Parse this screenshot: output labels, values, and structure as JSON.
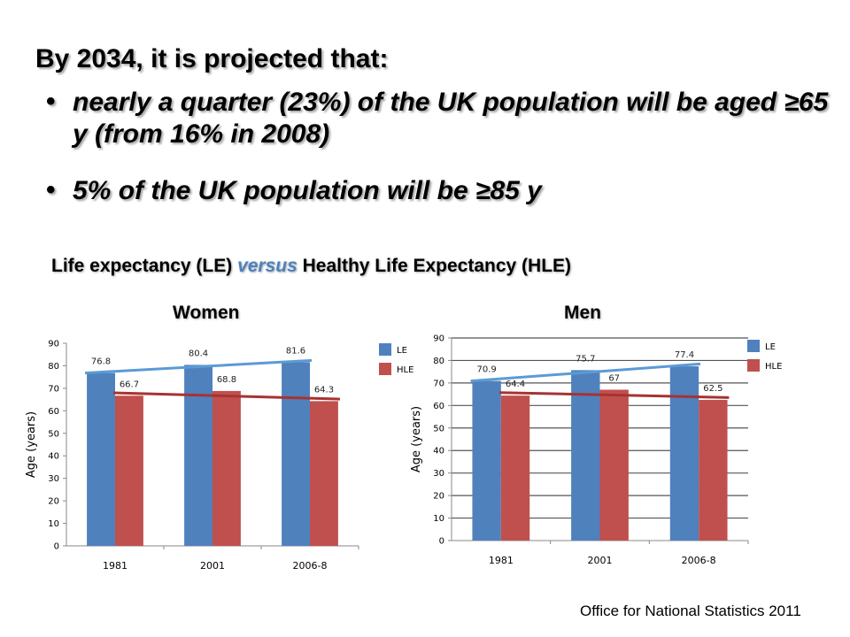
{
  "heading": "By 2034, it is projected that:",
  "bullets": [
    "nearly a quarter (23%) of the UK population will be aged ≥65 y (from 16% in 2008)",
    "5% of the UK population will be ≥85 y"
  ],
  "bullet_symbol": "•",
  "subtitle": {
    "part1": "Life expectancy (LE) ",
    "versus": "versus",
    "part2": " Healthy Life Expectancy (HLE)"
  },
  "source": "Office for National Statistics 2011",
  "colors": {
    "le": "#4f81bd",
    "hle": "#c0504d",
    "le_trend": "#5b9bd5",
    "hle_trend": "#a83232",
    "versus": "#4f81bd"
  },
  "chart_data": [
    {
      "type": "bar",
      "title": "Women",
      "categories": [
        "1981",
        "2001",
        "2006-8"
      ],
      "ylabel": "Age (years)",
      "ylim": [
        0,
        90
      ],
      "yticks": [
        0,
        10,
        20,
        30,
        40,
        50,
        60,
        70,
        80,
        90
      ],
      "grid": false,
      "legend_position": "top-right",
      "series": [
        {
          "name": "LE",
          "values": [
            76.8,
            80.4,
            81.6
          ],
          "labels": [
            "76.8",
            "80.4",
            "81.6"
          ]
        },
        {
          "name": "HLE",
          "values": [
            66.7,
            68.8,
            64.3
          ],
          "labels": [
            "66.7",
            "68.8",
            "64.3"
          ]
        }
      ]
    },
    {
      "type": "bar",
      "title": "Men",
      "categories": [
        "1981",
        "2001",
        "2006-8"
      ],
      "ylabel": "Age (years)",
      "ylim": [
        0,
        90
      ],
      "yticks": [
        0,
        10,
        20,
        30,
        40,
        50,
        60,
        70,
        80,
        90
      ],
      "grid": true,
      "legend_position": "top-right",
      "series": [
        {
          "name": "LE",
          "values": [
            70.9,
            75.7,
            77.4
          ],
          "labels": [
            "70.9",
            "75.7",
            "77.4"
          ]
        },
        {
          "name": "HLE",
          "values": [
            64.4,
            67,
            62.5
          ],
          "labels": [
            "64.4",
            "67",
            "62.5"
          ]
        }
      ]
    }
  ]
}
